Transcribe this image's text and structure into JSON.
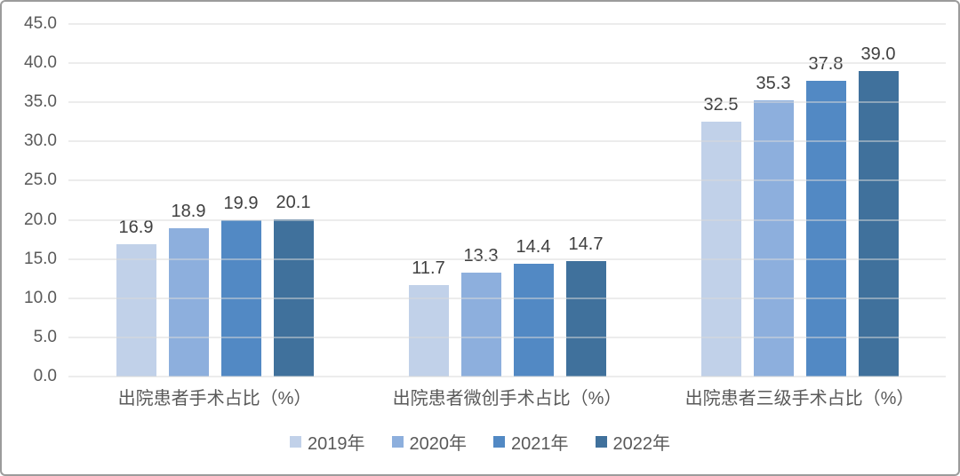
{
  "chart_data": {
    "type": "bar",
    "title": "",
    "categories": [
      "出院患者手术占比（%）",
      "出院患者微创手术占比（%）",
      "出院患者三级手术占比（%）"
    ],
    "series": [
      {
        "name": "2019年",
        "color": "#C1D1E9",
        "values": [
          16.9,
          11.7,
          32.5
        ]
      },
      {
        "name": "2020年",
        "color": "#8DAFDD",
        "values": [
          18.9,
          13.3,
          35.3
        ]
      },
      {
        "name": "2021年",
        "color": "#5289C4",
        "values": [
          19.9,
          14.4,
          37.8
        ]
      },
      {
        "name": "2022年",
        "color": "#40719C",
        "values": [
          20.1,
          14.7,
          39.0
        ]
      }
    ],
    "ylim": [
      0,
      45
    ],
    "y_tick_step": 5,
    "y_tick_labels": [
      "0.0",
      "5.0",
      "10.0",
      "15.0",
      "20.0",
      "25.0",
      "30.0",
      "35.0",
      "40.0",
      "45.0"
    ],
    "grid": true,
    "legend_position": "bottom",
    "value_labels_shown": true,
    "value_label_decimals": 1
  },
  "style": {
    "grid_color": "#d9d9d9",
    "axis_text_color": "#595959",
    "value_text_color": "#404040",
    "category_text_color": "#595959",
    "legend_text_color": "#595959",
    "background": "#ffffff",
    "frame_border_color": "#9c9c9c"
  }
}
